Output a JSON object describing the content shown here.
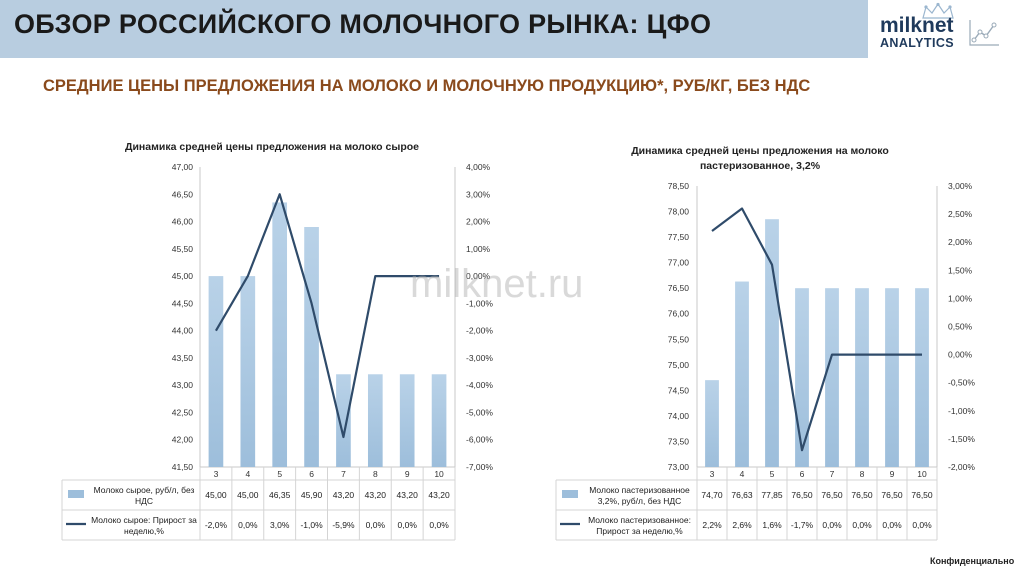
{
  "header": {
    "title": "ОБЗОР РОССИЙСКОГО МОЛОЧНОГО РЫНКА: ЦФО",
    "logo_line1": "milknet",
    "logo_line2": "ANALYTICS"
  },
  "subtitle": "СРЕДНИЕ ЦЕНЫ ПРЕДЛОЖЕНИЯ НА МОЛОКО И МОЛОЧНУЮ ПРОДУКЦИЮ*, РУБ/КГ, БЕЗ НДС",
  "watermark": "milknet.ru",
  "footer": "Конфиденциально",
  "colors": {
    "bar": "#9dbedb",
    "bar_top": "#b9d2e8",
    "line": "#2f4b6a",
    "header": "#b8cde0",
    "subtitle": "#8a4a1c"
  },
  "chart_data": [
    {
      "type": "bar",
      "title": "Динамика средней цены предложения на молоко сырое",
      "categories": [
        "3",
        "4",
        "5",
        "6",
        "7",
        "8",
        "9",
        "10"
      ],
      "ylim": [
        41.5,
        47.0
      ],
      "y_ticks": [
        "47,00",
        "46,50",
        "46,00",
        "45,50",
        "45,00",
        "44,50",
        "44,00",
        "43,50",
        "43,00",
        "42,50",
        "42,00",
        "41,50"
      ],
      "y2lim": [
        -7.0,
        4.0
      ],
      "y2_ticks": [
        "4,00%",
        "3,00%",
        "2,00%",
        "1,00%",
        "0,00%",
        "-1,00%",
        "-2,00%",
        "-3,00%",
        "-4,00%",
        "-5,00%",
        "-6,00%",
        "-7,00%"
      ],
      "grid": false,
      "legend": "table-bottom",
      "series": [
        {
          "name": "Молоко сырое, руб/л, без НДС",
          "type": "bar",
          "values": [
            45.0,
            45.0,
            46.35,
            45.9,
            43.2,
            43.2,
            43.2,
            43.2
          ],
          "labels": [
            "45,00",
            "45,00",
            "46,35",
            "45,90",
            "43,20",
            "43,20",
            "43,20",
            "43,20"
          ]
        },
        {
          "name": "Молоко сырое: Прирост за неделю,%",
          "type": "line",
          "axis": "secondary",
          "values": [
            -2.0,
            0.0,
            3.0,
            -1.0,
            -5.9,
            0.0,
            0.0,
            0.0
          ],
          "labels": [
            "-2,0%",
            "0,0%",
            "3,0%",
            "-1,0%",
            "-5,9%",
            "0,0%",
            "0,0%",
            "0,0%"
          ]
        }
      ]
    },
    {
      "type": "bar",
      "title": "Динамика средней цены предложения на молоко пастеризованное, 3,2%",
      "categories": [
        "3",
        "4",
        "5",
        "6",
        "7",
        "8",
        "9",
        "10"
      ],
      "ylim": [
        73.0,
        78.5
      ],
      "y_ticks": [
        "78,50",
        "78,00",
        "77,50",
        "77,00",
        "76,50",
        "76,00",
        "75,50",
        "75,00",
        "74,50",
        "74,00",
        "73,50",
        "73,00"
      ],
      "y2lim": [
        -2.0,
        3.0
      ],
      "y2_ticks": [
        "3,00%",
        "2,50%",
        "2,00%",
        "1,50%",
        "1,00%",
        "0,50%",
        "0,00%",
        "-0,50%",
        "-1,00%",
        "-1,50%",
        "-2,00%"
      ],
      "grid": false,
      "legend": "table-bottom",
      "series": [
        {
          "name": "Молоко пастеризованное 3,2%, руб/л, без НДС",
          "type": "bar",
          "values": [
            74.7,
            76.63,
            77.85,
            76.5,
            76.5,
            76.5,
            76.5,
            76.5
          ],
          "labels": [
            "74,70",
            "76,63",
            "77,85",
            "76,50",
            "76,50",
            "76,50",
            "76,50",
            "76,50"
          ]
        },
        {
          "name": "Молоко пастеризованное: Прирост за неделю,%",
          "type": "line",
          "axis": "secondary",
          "values": [
            2.2,
            2.6,
            1.6,
            -1.7,
            0.0,
            0.0,
            0.0,
            0.0
          ],
          "labels": [
            "2,2%",
            "2,6%",
            "1,6%",
            "-1,7%",
            "0,0%",
            "0,0%",
            "0,0%",
            "0,0%"
          ]
        }
      ]
    }
  ]
}
